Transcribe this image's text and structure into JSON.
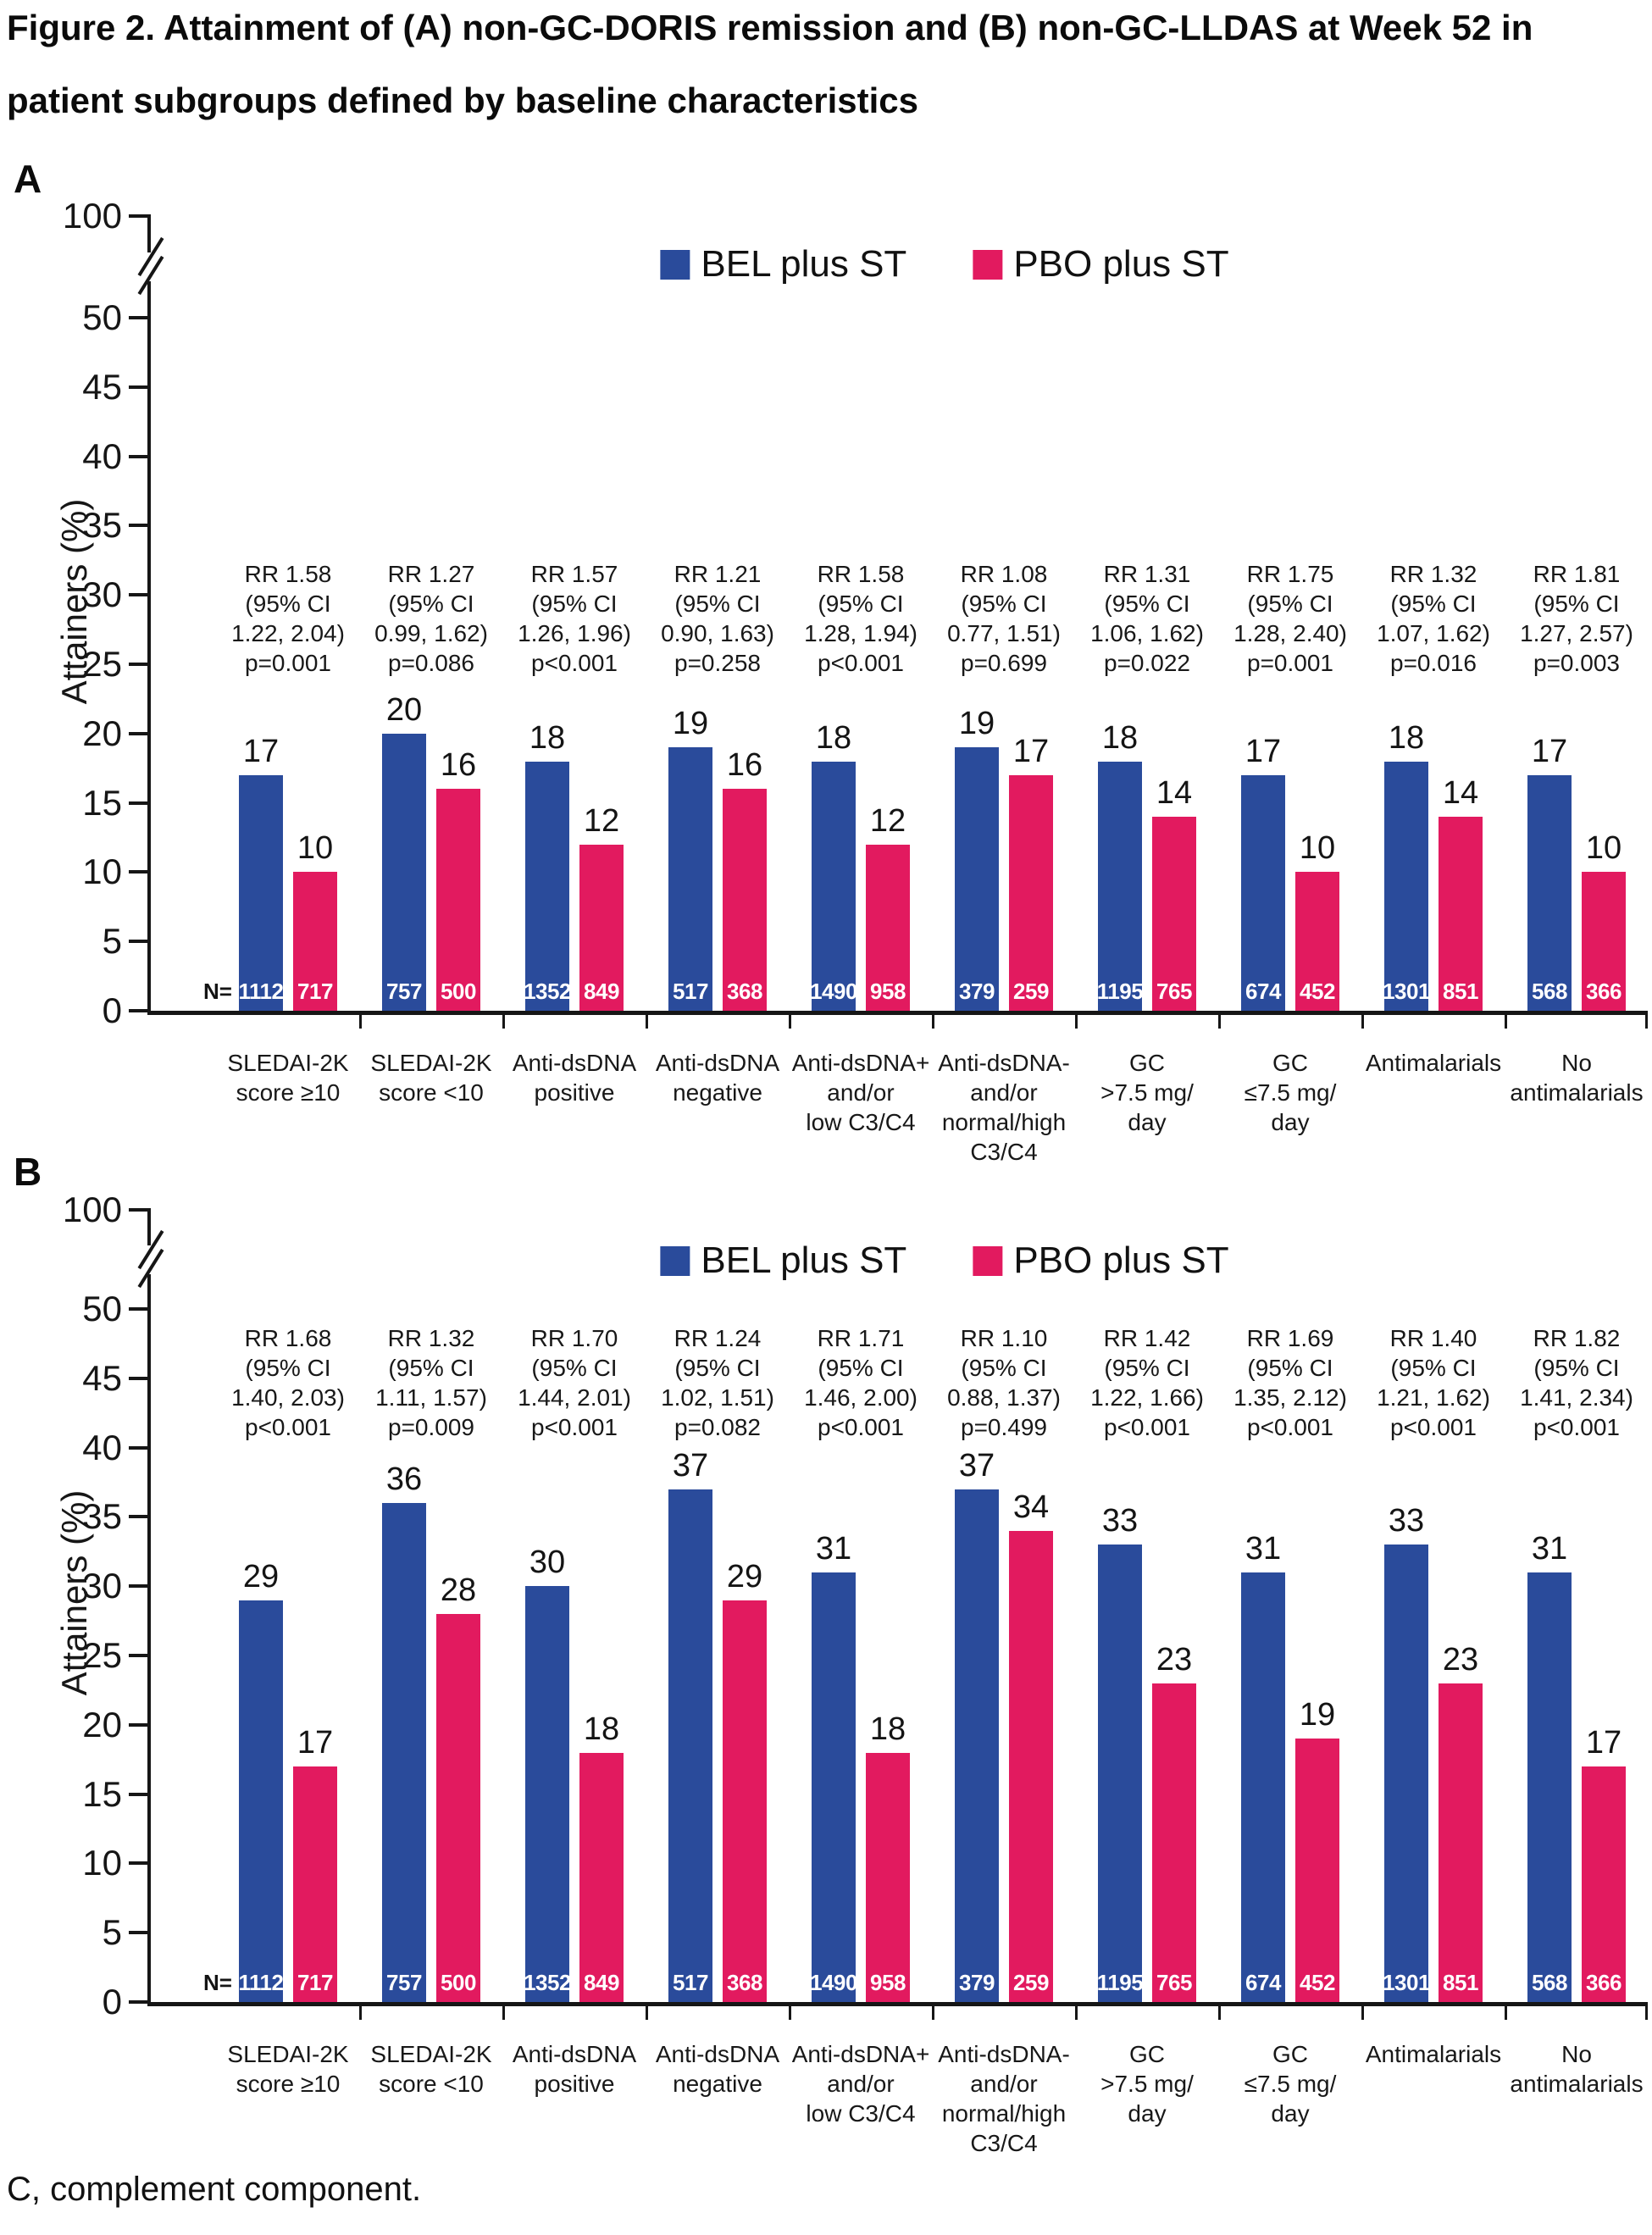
{
  "title": {
    "line1": "Figure 2. Attainment of (A) non-GC-DORIS remission and (B) non-GC-LLDAS at Week 52 in",
    "line2": "patient subgroups defined by baseline characteristics"
  },
  "footnote": "C, complement component.",
  "n_prefix": "N=",
  "legend": {
    "series": [
      {
        "label": "BEL plus ST",
        "color": "#2a4b9b"
      },
      {
        "label": "PBO plus ST",
        "color": "#e21a5f"
      }
    ]
  },
  "chart_data": [
    {
      "panel": "A",
      "type": "bar",
      "y_axis": {
        "label": "Attainers (%)",
        "ticks": [
          0,
          5,
          10,
          15,
          20,
          25,
          30,
          35,
          40,
          45,
          50
        ],
        "top_tick": 100,
        "axis_break": true,
        "ylim": [
          0,
          100
        ]
      },
      "categories": [
        [
          "SLEDAI-2K",
          "score ≥10"
        ],
        [
          "SLEDAI-2K",
          "score <10"
        ],
        [
          "Anti-dsDNA",
          "positive"
        ],
        [
          "Anti-dsDNA",
          "negative"
        ],
        [
          "Anti-dsDNA+",
          "and/or",
          "low C3/C4"
        ],
        [
          "Anti-dsDNA-",
          "and/or",
          "normal/high",
          "C3/C4"
        ],
        [
          "GC",
          ">7.5 mg/",
          "day"
        ],
        [
          "GC",
          "≤7.5 mg/",
          "day"
        ],
        [
          "Antimalarials"
        ],
        [
          "No",
          "antimalarials"
        ]
      ],
      "series": [
        {
          "name": "BEL plus ST",
          "color": "#2a4b9b",
          "values": [
            17,
            20,
            18,
            19,
            18,
            19,
            18,
            17,
            18,
            17
          ],
          "n": [
            1112,
            757,
            1352,
            517,
            1490,
            379,
            1195,
            674,
            1301,
            568
          ]
        },
        {
          "name": "PBO plus ST",
          "color": "#e21a5f",
          "values": [
            10,
            16,
            12,
            16,
            12,
            17,
            14,
            10,
            14,
            10
          ],
          "n": [
            717,
            500,
            849,
            368,
            958,
            259,
            765,
            452,
            851,
            366
          ]
        }
      ],
      "annotations": [
        [
          "RR 1.58",
          "(95% CI",
          "1.22, 2.04)",
          "p=0.001"
        ],
        [
          "RR 1.27",
          "(95% CI",
          "0.99, 1.62)",
          "p=0.086"
        ],
        [
          "RR 1.57",
          "(95% CI",
          "1.26, 1.96)",
          "p<0.001"
        ],
        [
          "RR 1.21",
          "(95% CI",
          "0.90, 1.63)",
          "p=0.258"
        ],
        [
          "RR 1.58",
          "(95% CI",
          "1.28, 1.94)",
          "p<0.001"
        ],
        [
          "RR 1.08",
          "(95% CI",
          "0.77, 1.51)",
          "p=0.699"
        ],
        [
          "RR 1.31",
          "(95% CI",
          "1.06, 1.62)",
          "p=0.022"
        ],
        [
          "RR 1.75",
          "(95% CI",
          "1.28, 2.40)",
          "p=0.001"
        ],
        [
          "RR 1.32",
          "(95% CI",
          "1.07, 1.62)",
          "p=0.016"
        ],
        [
          "RR 1.81",
          "(95% CI",
          "1.27, 2.57)",
          "p=0.003"
        ]
      ]
    },
    {
      "panel": "B",
      "type": "bar",
      "y_axis": {
        "label": "Attainers (%)",
        "ticks": [
          0,
          5,
          10,
          15,
          20,
          25,
          30,
          35,
          40,
          45,
          50
        ],
        "top_tick": 100,
        "axis_break": true,
        "ylim": [
          0,
          100
        ]
      },
      "categories": [
        [
          "SLEDAI-2K",
          "score ≥10"
        ],
        [
          "SLEDAI-2K",
          "score <10"
        ],
        [
          "Anti-dsDNA",
          "positive"
        ],
        [
          "Anti-dsDNA",
          "negative"
        ],
        [
          "Anti-dsDNA+",
          "and/or",
          "low C3/C4"
        ],
        [
          "Anti-dsDNA-",
          "and/or",
          "normal/high",
          "C3/C4"
        ],
        [
          "GC",
          ">7.5 mg/",
          "day"
        ],
        [
          "GC",
          "≤7.5 mg/",
          "day"
        ],
        [
          "Antimalarials"
        ],
        [
          "No",
          "antimalarials"
        ]
      ],
      "series": [
        {
          "name": "BEL plus ST",
          "color": "#2a4b9b",
          "values": [
            29,
            36,
            30,
            37,
            31,
            37,
            33,
            31,
            33,
            31
          ],
          "n": [
            1112,
            757,
            1352,
            517,
            1490,
            379,
            1195,
            674,
            1301,
            568
          ]
        },
        {
          "name": "PBO plus ST",
          "color": "#e21a5f",
          "values": [
            17,
            28,
            18,
            29,
            18,
            34,
            23,
            19,
            23,
            17
          ],
          "n": [
            717,
            500,
            849,
            368,
            958,
            259,
            765,
            452,
            851,
            366
          ]
        }
      ],
      "annotations": [
        [
          "RR 1.68",
          "(95% CI",
          "1.40, 2.03)",
          "p<0.001"
        ],
        [
          "RR 1.32",
          "(95% CI",
          "1.11, 1.57)",
          "p=0.009"
        ],
        [
          "RR 1.70",
          "(95% CI",
          "1.44, 2.01)",
          "p<0.001"
        ],
        [
          "RR 1.24",
          "(95% CI",
          "1.02, 1.51)",
          "p=0.082"
        ],
        [
          "RR 1.71",
          "(95% CI",
          "1.46, 2.00)",
          "p<0.001"
        ],
        [
          "RR 1.10",
          "(95% CI",
          "0.88, 1.37)",
          "p=0.499"
        ],
        [
          "RR 1.42",
          "(95% CI",
          "1.22, 1.66)",
          "p<0.001"
        ],
        [
          "RR 1.69",
          "(95% CI",
          "1.35, 2.12)",
          "p<0.001"
        ],
        [
          "RR 1.40",
          "(95% CI",
          "1.21, 1.62)",
          "p<0.001"
        ],
        [
          "RR 1.82",
          "(95% CI",
          "1.41, 2.34)",
          "p<0.001"
        ]
      ]
    }
  ]
}
